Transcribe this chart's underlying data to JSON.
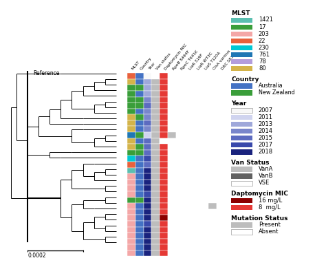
{
  "n_taxa": 30,
  "col_headers": [
    "MLST",
    "Country",
    "Year",
    "Van status",
    "Daptomycin MIC",
    "RpoB S494F",
    "RpoC T641K",
    "LiaR S19F",
    "LiaR W73C",
    "LiaS T120A",
    "ClsA various",
    "DltC S83C"
  ],
  "n_cols": 12,
  "mlst_colors": {
    "1421": "#5bbfb0",
    "17": "#3a9e3a",
    "203": "#f4a7a7",
    "22": "#e8613c",
    "230": "#00c8d4",
    "761": "#1f77b4",
    "78": "#b39ddb",
    "80": "#d4b44a"
  },
  "country_colors": {
    "Australia": "#4472c4",
    "New_Zealand": "#3a9e3a"
  },
  "year_colors": {
    "2007": "#f8f8f8",
    "2011": "#d0d4ef",
    "2013": "#9fa8da",
    "2014": "#7986cb",
    "2015": "#5c6bc0",
    "2017": "#3949ab",
    "2018": "#1a237e"
  },
  "van_colors": {
    "VanA": "#bdbdbd",
    "VanB": "#616161",
    "VSE": "#ffffff"
  },
  "dap_colors": {
    "16": "#8b0000",
    "8": "#e53935",
    "none": "#ffffff"
  },
  "mut_colors": {
    "present": "#bdbdbd",
    "absent": "#ffffff"
  },
  "ref_row_colors": [
    "#e8613c",
    "#4472c4",
    "#f8f8f8",
    "#ffffff",
    "#e53935",
    "#ffffff",
    "#ffffff",
    "#ffffff",
    "#ffffff",
    "#ffffff",
    "#ffffff",
    "#ffffff"
  ],
  "heatmap_data": [
    [
      "80",
      "Australia",
      "2013",
      "VanA",
      "8",
      0,
      0,
      0,
      0,
      0,
      0,
      0
    ],
    [
      "17",
      "New_Zealand",
      "2013",
      "VanA",
      "8",
      0,
      0,
      0,
      0,
      0,
      0,
      0
    ],
    [
      "17",
      "Australia",
      "2013",
      "VanA",
      "8",
      0,
      0,
      0,
      0,
      0,
      0,
      0
    ],
    [
      "17",
      "New_Zealand",
      "2014",
      "VanA",
      "8",
      0,
      0,
      0,
      0,
      0,
      0,
      0
    ],
    [
      "17",
      "New_Zealand",
      "2015",
      "VanA",
      "8",
      0,
      0,
      0,
      0,
      0,
      0,
      0
    ],
    [
      "17",
      "Australia",
      "2014",
      "VanA",
      "8",
      0,
      0,
      0,
      0,
      0,
      0,
      0
    ],
    [
      "80",
      "New_Zealand",
      "2014",
      "VanA",
      "8",
      0,
      0,
      0,
      0,
      0,
      0,
      0
    ],
    [
      "80",
      "Australia",
      "2015",
      "VanA",
      "8",
      0,
      0,
      0,
      0,
      0,
      0,
      0
    ],
    [
      "80",
      "Australia",
      "2014",
      "VanA",
      "8",
      0,
      0,
      0,
      0,
      0,
      0,
      0
    ],
    [
      "761",
      "New_Zealand",
      "2011",
      "VanA",
      "8",
      1,
      0,
      0,
      0,
      0,
      0,
      0
    ],
    [
      "80",
      "Australia",
      "2015",
      "VanA",
      "none",
      0,
      0,
      0,
      0,
      0,
      0,
      0
    ],
    [
      "80",
      "New_Zealand",
      "2015",
      "VanA",
      "8",
      0,
      0,
      0,
      0,
      0,
      0,
      0
    ],
    [
      "17",
      "New_Zealand",
      "2015",
      "VanA",
      "8",
      0,
      0,
      0,
      0,
      0,
      0,
      0
    ],
    [
      "230",
      "Australia",
      "2017",
      "VanA",
      "8",
      0,
      0,
      0,
      0,
      0,
      0,
      0
    ],
    [
      "22",
      "Australia",
      "2015",
      "VanA",
      "8",
      0,
      0,
      0,
      0,
      0,
      0,
      0
    ],
    [
      "1421",
      "Australia",
      "2018",
      "VanA",
      "8",
      0,
      0,
      0,
      0,
      0,
      0,
      0
    ],
    [
      "203",
      "Australia",
      "2018",
      "VanA",
      "8",
      0,
      0,
      0,
      0,
      0,
      0,
      0
    ],
    [
      "203",
      "Australia",
      "2018",
      "VanA",
      "8",
      0,
      0,
      0,
      0,
      0,
      0,
      0
    ],
    [
      "203",
      "Australia",
      "2018",
      "VanA",
      "8",
      0,
      0,
      0,
      0,
      0,
      0,
      0
    ],
    [
      "203",
      "Australia",
      "2017",
      "VanA",
      "8",
      0,
      0,
      0,
      0,
      0,
      0,
      0
    ],
    [
      "17",
      "New_Zealand",
      "2018",
      "VanA",
      "8",
      0,
      0,
      0,
      0,
      0,
      0,
      0
    ],
    [
      "203",
      "Australia",
      "2018",
      "VanA",
      "8",
      0,
      0,
      0,
      0,
      0,
      1,
      0
    ],
    [
      "203",
      "Australia",
      "2018",
      "VanA",
      "8",
      0,
      0,
      0,
      0,
      0,
      0,
      0
    ],
    [
      "203",
      "Australia",
      "2018",
      "VanA",
      "16",
      0,
      0,
      0,
      0,
      0,
      0,
      0
    ],
    [
      "203",
      "Australia",
      "2017",
      "VanA",
      "8",
      0,
      0,
      0,
      0,
      0,
      0,
      0
    ],
    [
      "203",
      "Australia",
      "2018",
      "VanA",
      "8",
      0,
      0,
      0,
      0,
      0,
      0,
      0
    ],
    [
      "203",
      "Australia",
      "2018",
      "VanA",
      "8",
      0,
      0,
      0,
      0,
      0,
      0,
      0
    ],
    [
      "203",
      "Australia",
      "2018",
      "VanA",
      "8",
      0,
      0,
      0,
      0,
      0,
      0,
      0
    ],
    [
      "203",
      "Australia",
      "2018",
      "VanA",
      "8",
      0,
      0,
      0,
      0,
      0,
      0,
      0
    ],
    [
      "203",
      "Australia",
      "2018",
      "VanA",
      "8",
      0,
      0,
      0,
      0,
      0,
      0,
      0
    ]
  ],
  "bg_color": "#ffffff"
}
